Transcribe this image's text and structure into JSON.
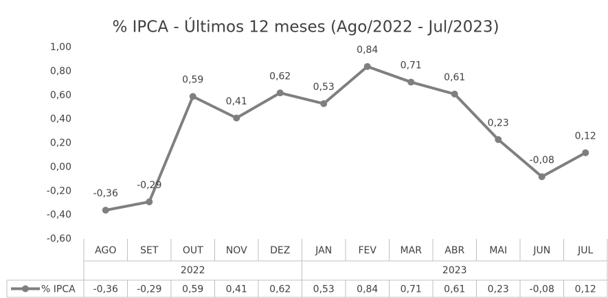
{
  "chart_data": {
    "type": "line",
    "title": "% IPCA - Últimos 12 meses (Ago/2022 - Jul/2023)",
    "categories": [
      "AGO",
      "SET",
      "OUT",
      "NOV",
      "DEZ",
      "JAN",
      "FEV",
      "MAR",
      "ABR",
      "MAI",
      "JUN",
      "JUL"
    ],
    "groups": [
      {
        "label": "2022",
        "span": 5
      },
      {
        "label": "2023",
        "span": 7
      }
    ],
    "series": [
      {
        "name": "% IPCA",
        "color": "#7f7f7f",
        "values": [
          -0.36,
          -0.29,
          0.59,
          0.41,
          0.62,
          0.53,
          0.84,
          0.71,
          0.61,
          0.23,
          -0.08,
          0.12
        ],
        "value_labels": [
          "-0,36",
          "-0,29",
          "0,59",
          "0,41",
          "0,62",
          "0,53",
          "0,84",
          "0,71",
          "0,61",
          "0,23",
          "-0,08",
          "0,12"
        ]
      }
    ],
    "ylim": [
      -0.6,
      1.0
    ],
    "yticks": [
      {
        "value": 1.0,
        "label": "1,00"
      },
      {
        "value": 0.8,
        "label": "0,80"
      },
      {
        "value": 0.6,
        "label": "0,60"
      },
      {
        "value": 0.4,
        "label": "0,40"
      },
      {
        "value": 0.2,
        "label": "0,20"
      },
      {
        "value": 0.0,
        "label": "0,00"
      },
      {
        "value": -0.2,
        "label": "-0,20"
      },
      {
        "value": -0.4,
        "label": "-0,40"
      },
      {
        "value": -0.6,
        "label": "-0,60"
      }
    ],
    "grid": false,
    "data_table": true
  }
}
